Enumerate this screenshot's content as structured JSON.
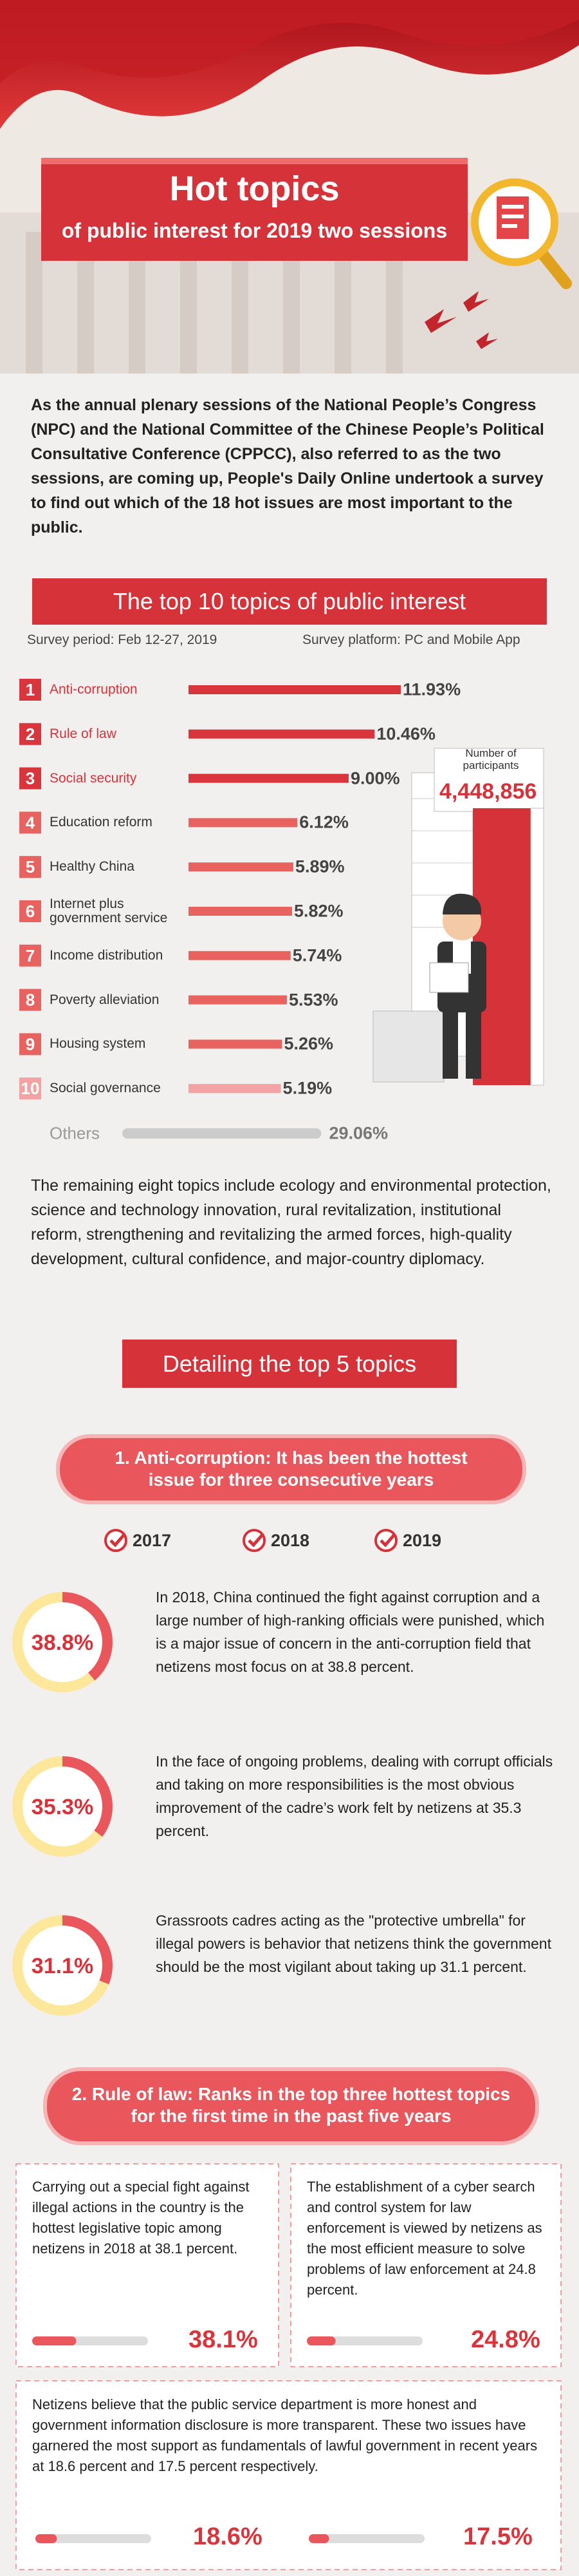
{
  "header": {
    "title": "Hot topics",
    "subtitle": "of public interest for 2019 two sessions"
  },
  "intro": "As the annual plenary sessions of the National People’s Congress (NPC) and the National Committee of the Chinese People’s Political Consultative Conference (CPPCC), also referred to as the two sessions, are coming up, People's Daily Online undertook a survey to find out which of the 18 hot issues are most important to the public.",
  "chart_data": {
    "type": "bar",
    "orientation": "horizontal",
    "title": "The top 10 topics of public interest",
    "survey_period": "Survey period: Feb 12-27, 2019",
    "survey_platform": "Survey platform: PC and Mobile App",
    "ranks": [
      1,
      2,
      3,
      4,
      5,
      6,
      7,
      8,
      9,
      10
    ],
    "categories": [
      "Anti-corruption",
      "Rule of law",
      "Social security",
      "Education reform",
      "Healthy China",
      "Internet plus government service",
      "Income distribution",
      "Poverty alleviation",
      "Housing system",
      "Social governance"
    ],
    "values": [
      11.93,
      10.46,
      9.0,
      6.12,
      5.89,
      5.82,
      5.74,
      5.53,
      5.26,
      5.19
    ],
    "value_labels": [
      "11.93%",
      "10.46%",
      "9.00%",
      "6.12%",
      "5.89%",
      "5.82%",
      "5.74%",
      "5.53%",
      "5.26%",
      "5.19%"
    ],
    "colors": [
      "#d8363c",
      "#d8363c",
      "#d8363c",
      "#e8625f",
      "#e8625f",
      "#e8625f",
      "#e8625f",
      "#e8625f",
      "#e8625f",
      "#f3a3a3"
    ],
    "others_label": "Others",
    "others_value": 29.06,
    "others_value_label": "29.06%",
    "others_color": "#cccccc",
    "participants_label": "Number of participants",
    "participants": "4,448,856"
  },
  "remaining": "The remaining eight topics include ecology and environmental protection, science and technology innovation, rural revitalization, institutional reform, strengthening and revitalizing the armed forces, high-quality development, cultural confidence, and major-country diplomacy.",
  "details_heading": "Detailing the top 5 topics",
  "section1": {
    "title": "1. Anti-corruption: It has been the hottest issue for three consecutive years",
    "years": [
      "2017",
      "2018",
      "2019"
    ],
    "items": [
      {
        "value": 38.8,
        "value_label": "38.8%",
        "text": "In 2018, China continued the fight against corruption and a large number of high-ranking officials were punished, which is a major issue of concern in the anti-corruption field that netizens most focus on at 38.8 percent."
      },
      {
        "value": 35.3,
        "value_label": "35.3%",
        "text": "In the face of ongoing problems, dealing with corrupt officials and taking on more responsibilities is the most obvious improvement of the cadre’s work felt by netizens at 35.3 percent."
      },
      {
        "value": 31.1,
        "value_label": "31.1%",
        "text": "Grassroots cadres acting as the \"protective umbrella\" for illegal powers is behavior that netizens think the government should be the most vigilant about taking up 31.1 percent."
      }
    ]
  },
  "section2": {
    "title": "2. Rule of law: Ranks in the top three hottest topics for the first time in the past five years",
    "cards": [
      {
        "text": "Carrying out a special fight against illegal actions in the country is the hottest legislative topic among netizens in 2018 at 38.1 percent.",
        "value": 38.1,
        "value_label": "38.1%"
      },
      {
        "text": "The establishment of a cyber search and control system for law enforcement is viewed by netizens as the most efficient measure to solve problems of law enforcement at 24.8 percent.",
        "value": 24.8,
        "value_label": "24.8%"
      }
    ],
    "wide_card": {
      "text": "Netizens believe that the public service department is more honest and government information disclosure is more transparent. These two issues have garnered the most support as fundamentals of lawful government in recent years at 18.6 percent and 17.5 percent respectively.",
      "values": [
        18.6,
        17.5
      ],
      "value_labels": [
        "18.6%",
        "17.5%"
      ]
    }
  }
}
